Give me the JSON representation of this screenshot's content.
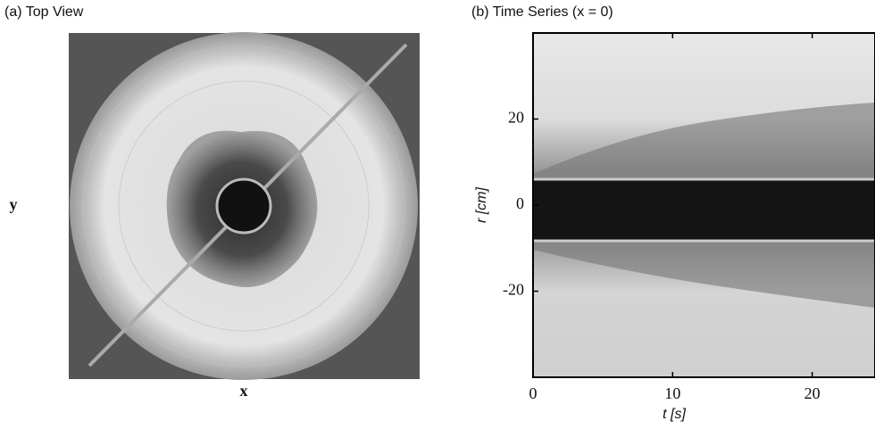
{
  "chart_data": [
    {
      "type": "image",
      "title": "(a) Top View",
      "xlabel": "x",
      "ylabel": "y"
    },
    {
      "type": "image",
      "title": "(b) Time Series (x = 0)",
      "xlabel": "t [s]",
      "ylabel": "r [cm]",
      "xlim": [
        0,
        24.5
      ],
      "xticks": [
        0,
        10,
        20
      ],
      "ylim": [
        -40,
        40
      ],
      "yticks": [
        -20,
        0,
        20
      ]
    }
  ]
}
